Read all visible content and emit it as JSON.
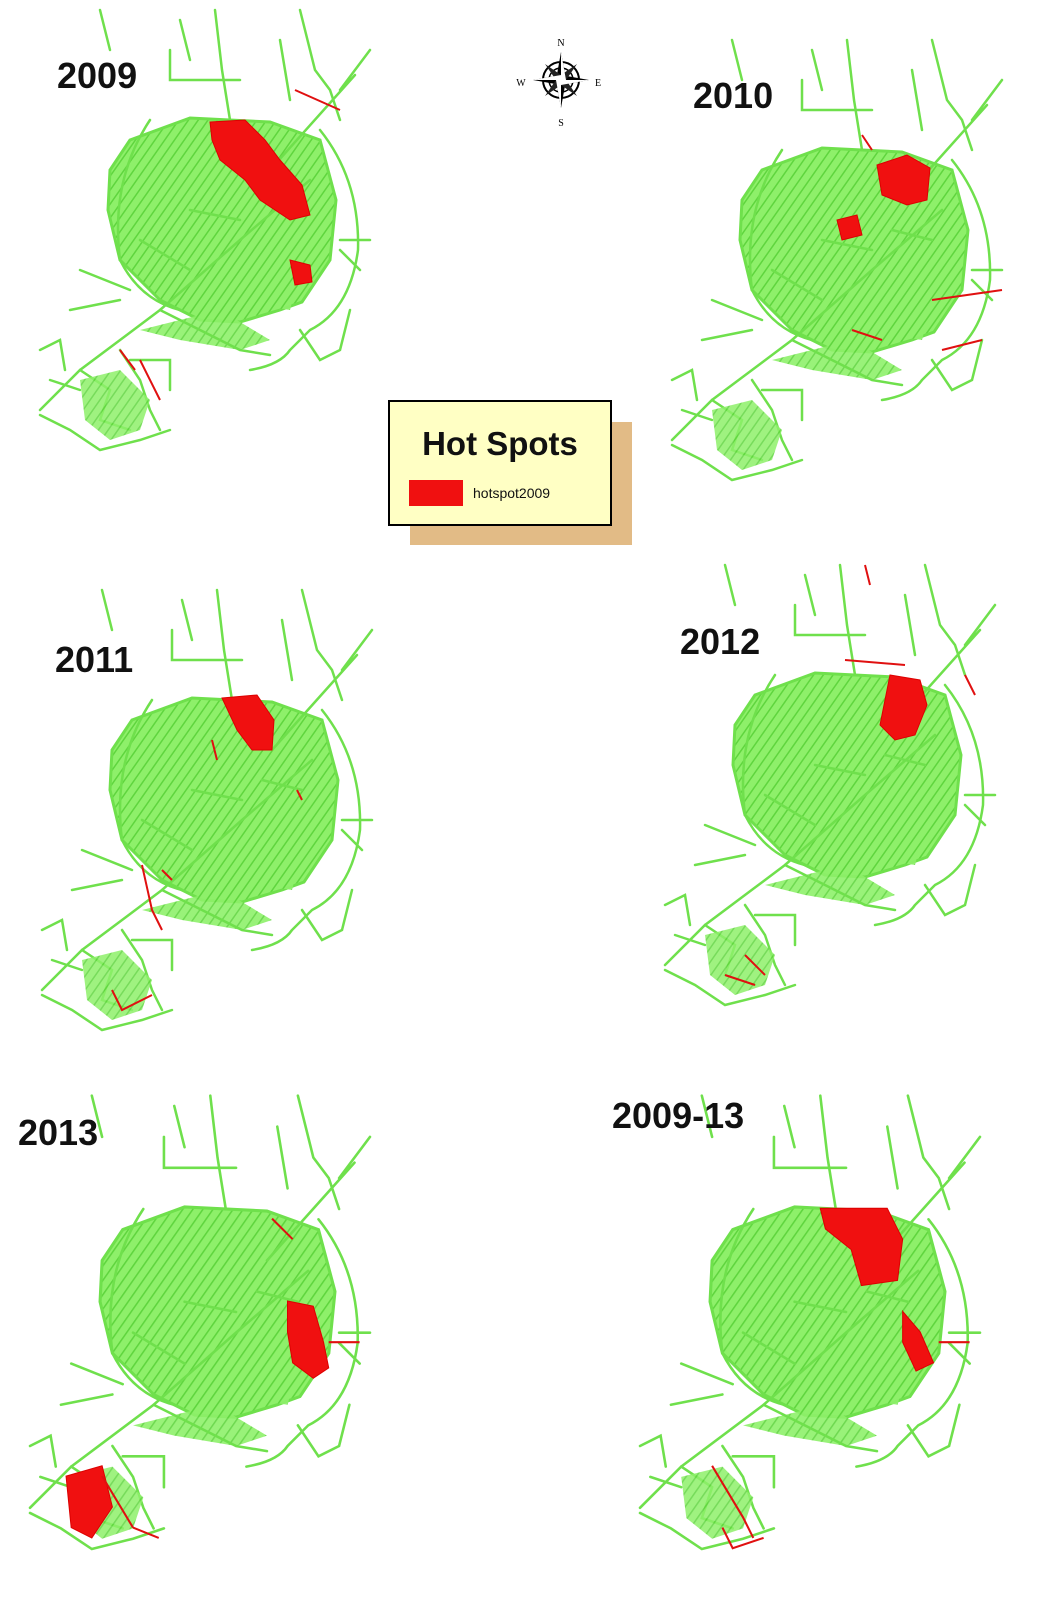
{
  "panels": [
    {
      "title": "2009"
    },
    {
      "title": "2010"
    },
    {
      "title": "2011"
    },
    {
      "title": "2012"
    },
    {
      "title": "2013"
    },
    {
      "title": "2009-13"
    }
  ],
  "compass": {
    "n": "N",
    "s": "S",
    "e": "E",
    "w": "W"
  },
  "legend": {
    "title": "Hot Spots",
    "entry": "hotspot2009"
  }
}
